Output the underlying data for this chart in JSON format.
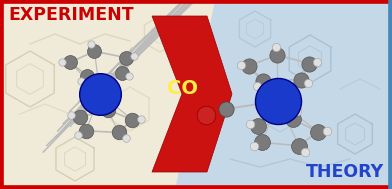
{
  "fig_width": 3.92,
  "fig_height": 1.89,
  "dpi": 100,
  "bg_left_color": "#f0ead8",
  "bg_right_color": "#c5d8e8",
  "border_color": "#cc0000",
  "border_right_color": "#4488bb",
  "border_lw": 6,
  "arrow_color": "#cc1111",
  "co_text_color": "#ffee44",
  "co_fontsize": 14,
  "experiment_text": "EXPERIMENT",
  "theory_text": "THEORY",
  "experiment_color": "#cc0000",
  "theory_color": "#2244cc",
  "label_fontsize": 12.5,
  "hex_color_left": "#c0b898",
  "hex_color_right": "#90afc8",
  "hex_alpha": 0.55,
  "hex_lw": 1.0,
  "metal_color": "#1a3acc",
  "carbon_color": "#7a7a7a",
  "oxygen_color": "#cc2222",
  "bond_color": "#bbbbbb",
  "white_color": "#e0e0e0",
  "bond_lw": 1.2
}
